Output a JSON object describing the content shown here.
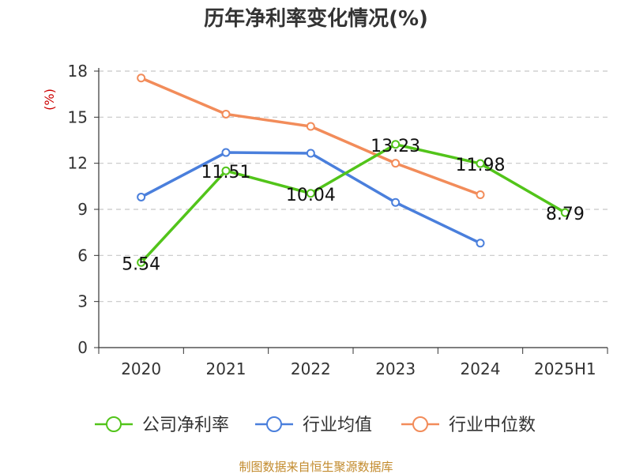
{
  "chart_data": {
    "type": "line",
    "title": "历年净利率变化情况(%)",
    "ylabel": "(%)",
    "xlabel": "",
    "categories": [
      "2020",
      "2021",
      "2022",
      "2023",
      "2024",
      "2025H1"
    ],
    "ylim": [
      0,
      18
    ],
    "yticks": [
      0,
      3,
      6,
      9,
      12,
      15,
      18
    ],
    "grid": true,
    "legend_position": "bottom",
    "series": [
      {
        "name": "公司净利率",
        "color": "#52c41a",
        "values": [
          5.54,
          11.51,
          10.04,
          13.23,
          11.98,
          8.79
        ],
        "labels": [
          "5.54",
          "11.51",
          "10.04",
          "13.23",
          "11.98",
          "8.79"
        ]
      },
      {
        "name": "行业均值",
        "color": "#4a7fdc",
        "values": [
          9.8,
          12.7,
          12.65,
          9.45,
          6.8,
          null
        ]
      },
      {
        "name": "行业中位数",
        "color": "#f28c5a",
        "values": [
          17.55,
          15.2,
          14.4,
          12.0,
          9.95,
          null
        ]
      }
    ]
  },
  "source": "制图数据来自恒生聚源数据库"
}
